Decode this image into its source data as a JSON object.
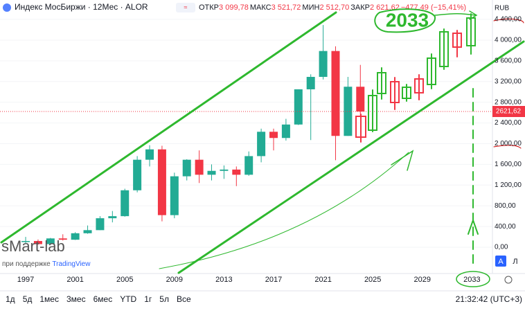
{
  "chart_data": {
    "type": "candlestick",
    "title": "Индекс МосБиржи · 12Мес · ALOR",
    "legend": {
      "open_label": "ОТКР",
      "open": "3 099,78",
      "high_label": "МАКС",
      "high": "3 521,72",
      "low_label": "МИН",
      "low": "2 512,70",
      "close_label": "ЗАКР",
      "close": "2 621,62",
      "change": "−477,49 (−15,41%)"
    },
    "currency": "RUB",
    "last_price": {
      "value": 2621.62,
      "label": "2621,62"
    },
    "annotation": "2033",
    "watermark": "sMart-lab",
    "watermark_sub": "при поддержке",
    "watermark_brand": "TradingView",
    "scale_buttons": [
      "A",
      "Л"
    ],
    "timeframes": [
      "1д",
      "5д",
      "1мес",
      "3мес",
      "6мес",
      "YTD",
      "1г",
      "5л",
      "Все"
    ],
    "clock": "21:32:42 (UTC+3)",
    "up_color": "#22ab94",
    "down_color": "#f23645",
    "x": [
      1997,
      1998,
      1999,
      2000,
      2001,
      2002,
      2003,
      2004,
      2005,
      2006,
      2007,
      2008,
      2009,
      2010,
      2011,
      2012,
      2013,
      2014,
      2015,
      2016,
      2017,
      2018,
      2019,
      2020,
      2021,
      2022,
      2023,
      2024
    ],
    "open": [
      100,
      120,
      60,
      170,
      145,
      270,
      330,
      560,
      600,
      1100,
      1690,
      1890,
      620,
      1370,
      1690,
      1400,
      1475,
      1500,
      1400,
      1760,
      2230,
      2110,
      2370,
      3050,
      3290,
      3790,
      2150,
      3099.78
    ],
    "high": [
      200,
      150,
      180,
      250,
      290,
      420,
      600,
      700,
      1130,
      1760,
      1970,
      1960,
      1440,
      1700,
      1870,
      1600,
      1580,
      1560,
      1850,
      2290,
      2290,
      2480,
      3050,
      3340,
      4292,
      3880,
      3290,
      3521.72
    ],
    "low": [
      80,
      50,
      50,
      130,
      140,
      260,
      330,
      480,
      590,
      1060,
      1560,
      500,
      560,
      1290,
      1240,
      1290,
      1320,
      1180,
      1380,
      1640,
      1870,
      2060,
      2360,
      2070,
      3240,
      1680,
      2150,
      2512.7
    ],
    "close": [
      120,
      60,
      170,
      145,
      270,
      330,
      560,
      600,
      1100,
      1690,
      1890,
      620,
      1370,
      1690,
      1400,
      1475,
      1500,
      1400,
      1760,
      2230,
      2110,
      2370,
      3050,
      3290,
      3790,
      2150,
      3100,
      2621.62
    ],
    "xlim": [
      1994.93,
      2034.6
    ],
    "xticks": [
      1997,
      2001,
      2005,
      2009,
      2013,
      2017,
      2021,
      2025,
      2029,
      2033
    ],
    "ylim": [
      -508,
      4775
    ],
    "yticks": [
      {
        "value": 0,
        "label": "0,00"
      },
      {
        "value": 400,
        "label": "400,00"
      },
      {
        "value": 800,
        "label": "800,00"
      },
      {
        "value": 1200,
        "label": "1 200,00"
      },
      {
        "value": 1600,
        "label": "1 600,00"
      },
      {
        "value": 2000,
        "label": "2 000,00"
      },
      {
        "value": 2400,
        "label": "2 400,00"
      },
      {
        "value": 2800,
        "label": "2 800,00"
      },
      {
        "value": 3200,
        "label": "3 200,00"
      },
      {
        "value": 3600,
        "label": "3 600,00"
      },
      {
        "value": 4000,
        "label": "4 000,00"
      },
      {
        "value": 4400,
        "label": "4 400,00"
      }
    ]
  }
}
